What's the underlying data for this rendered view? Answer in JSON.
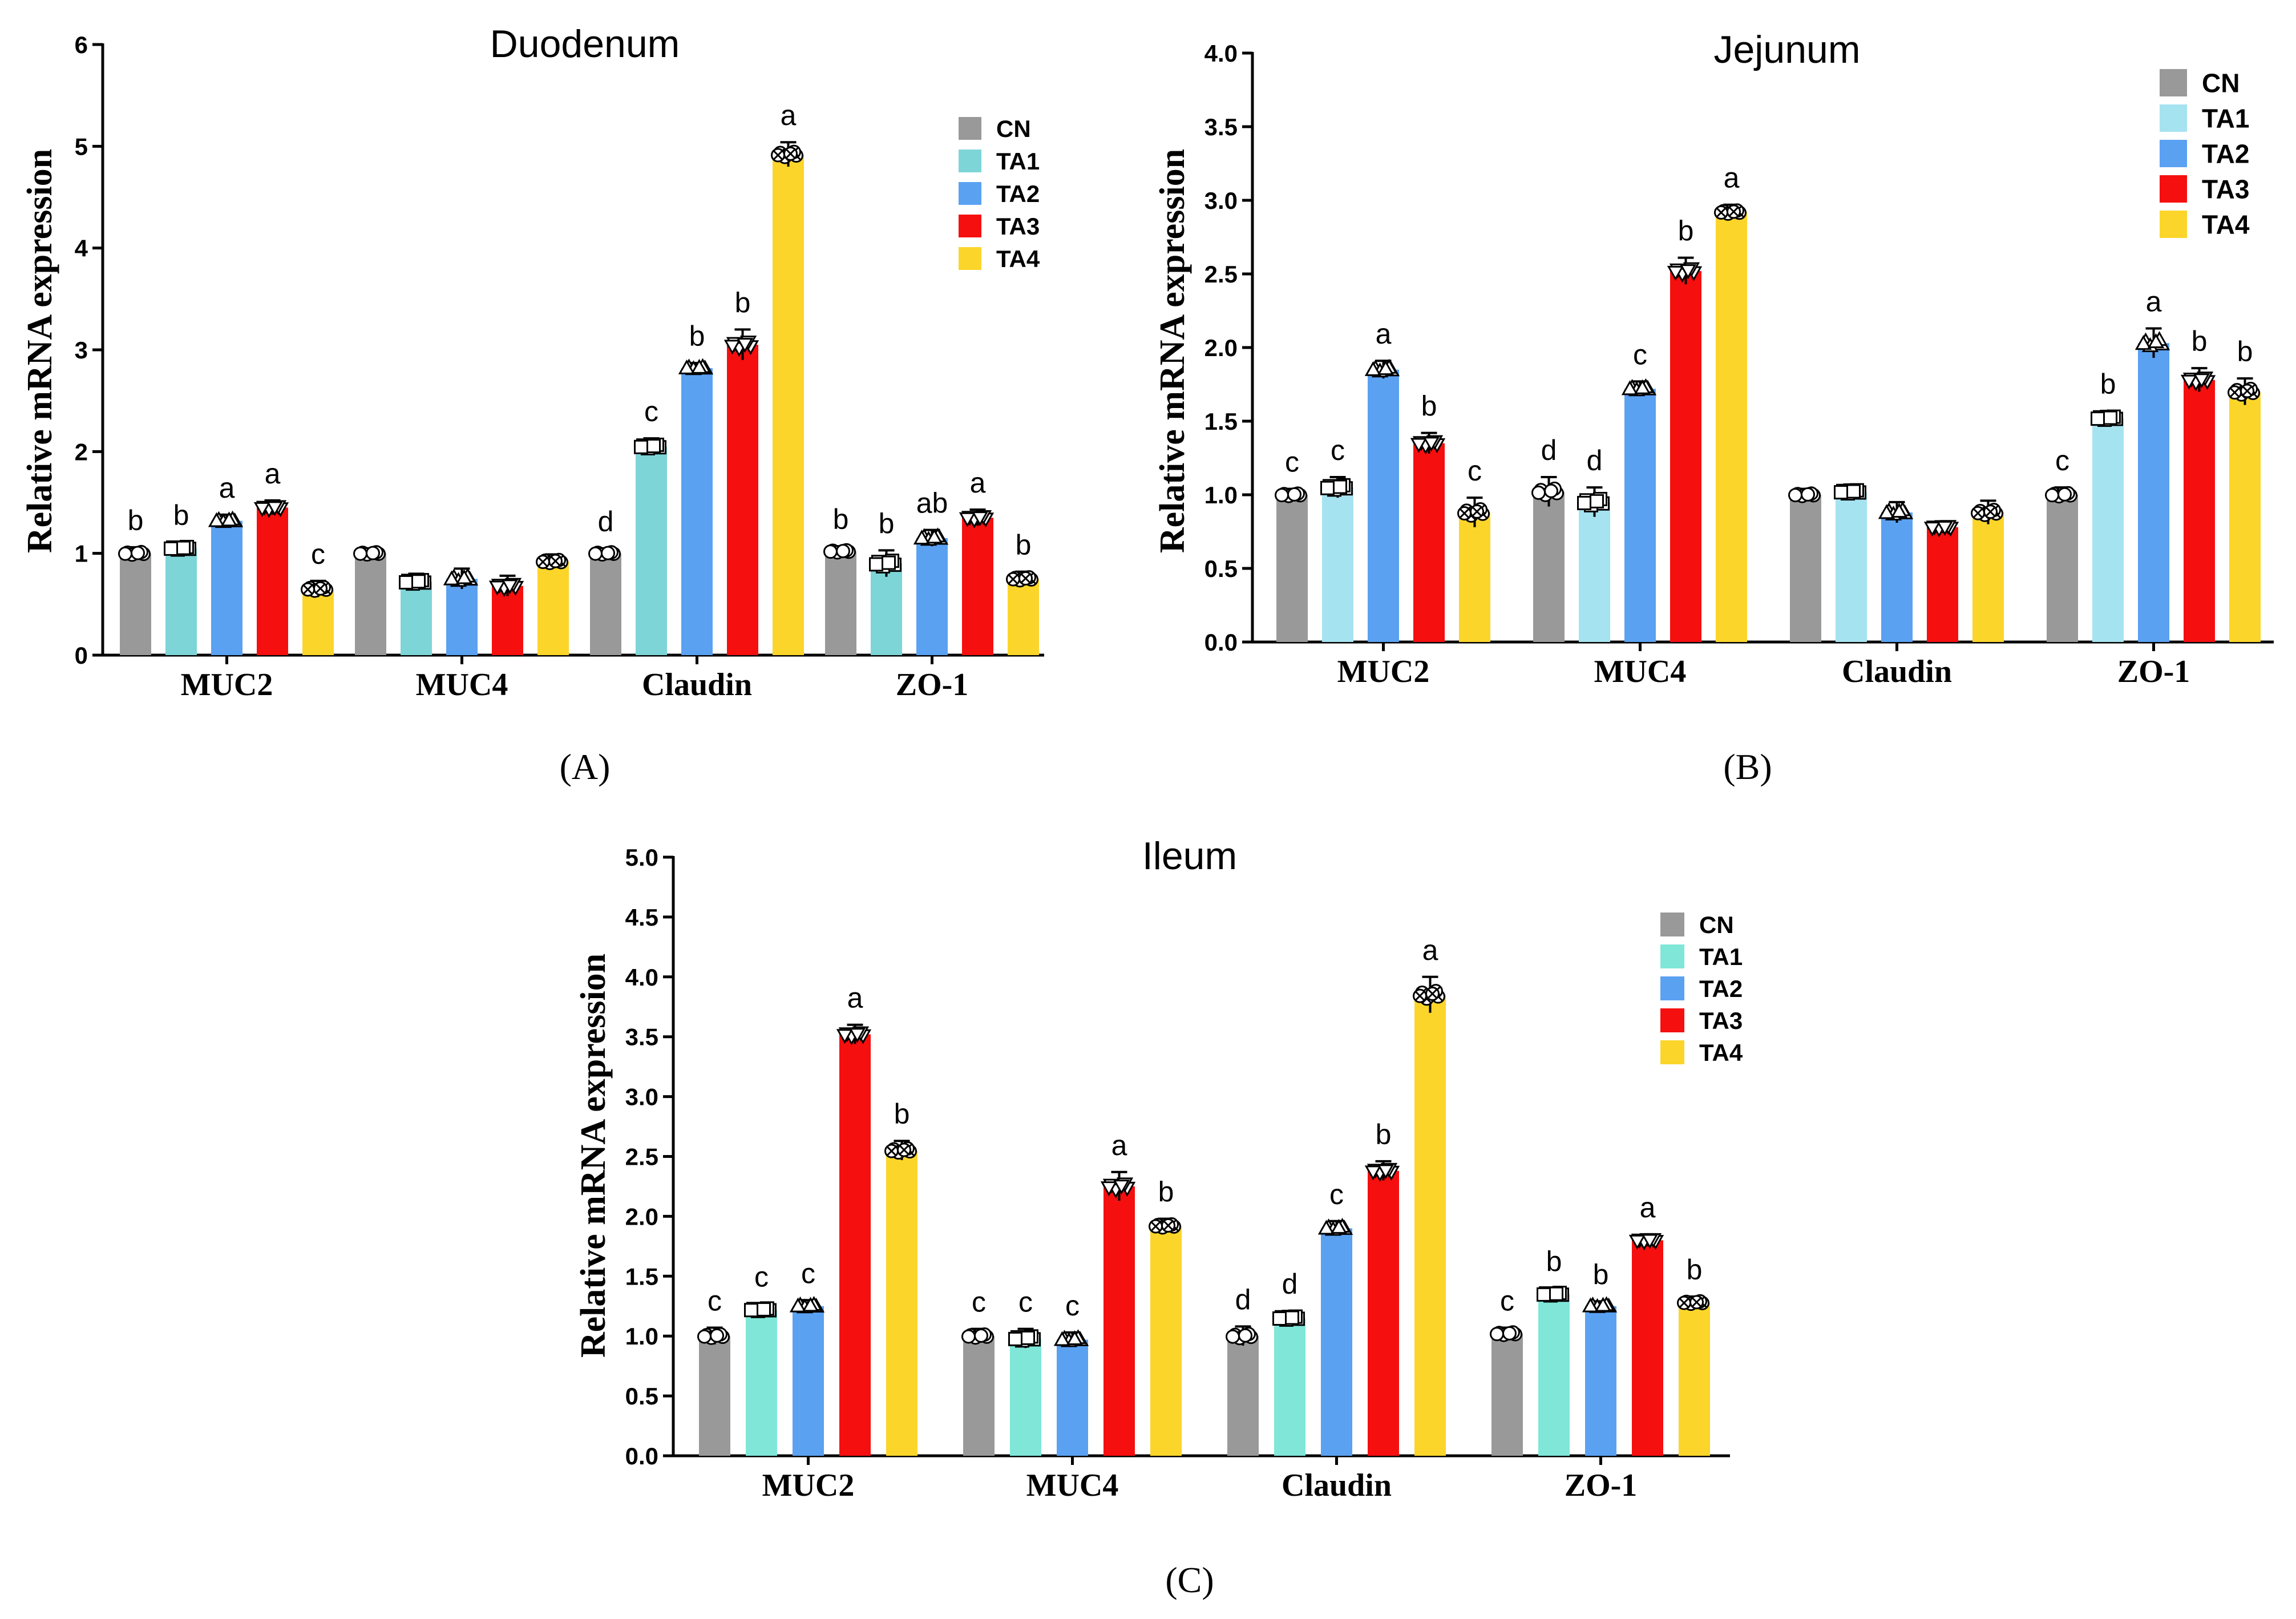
{
  "chart_data": [
    {
      "type": "bar",
      "title": "Duodenum",
      "ylabel": "Relative mRNA expression",
      "xlabel": "",
      "panel_label": "(A)",
      "ylim": [
        0,
        6
      ],
      "yticks": [
        "0",
        "1",
        "2",
        "3",
        "4",
        "5",
        "6"
      ],
      "categories": [
        "MUC2",
        "MUC4",
        "Claudin",
        "ZO-1"
      ],
      "legend": [
        "CN",
        "TA1",
        "TA2",
        "TA3",
        "TA4"
      ],
      "colors": [
        "#999999",
        "#7dd5d8",
        "#5aa1f2",
        "#f50f0f",
        "#fbd52a"
      ],
      "series": [
        {
          "name": "CN",
          "values": [
            1.0,
            1.0,
            1.0,
            1.02
          ],
          "errors": [
            0.06,
            0.05,
            0.05,
            0.05
          ],
          "letters": [
            "b",
            "",
            "d",
            "b"
          ]
        },
        {
          "name": "TA1",
          "values": [
            1.05,
            0.72,
            2.05,
            0.9
          ],
          "errors": [
            0.06,
            0.08,
            0.08,
            0.13
          ],
          "letters": [
            "b",
            "",
            "c",
            "b"
          ]
        },
        {
          "name": "TA2",
          "values": [
            1.32,
            0.75,
            2.82,
            1.15
          ],
          "errors": [
            0.06,
            0.1,
            0.05,
            0.08
          ],
          "letters": [
            "a",
            "",
            "b",
            "ab"
          ]
        },
        {
          "name": "TA3",
          "values": [
            1.45,
            0.68,
            3.05,
            1.35
          ],
          "errors": [
            0.07,
            0.1,
            0.15,
            0.08
          ],
          "letters": [
            "a",
            "",
            "b",
            "a"
          ]
        },
        {
          "name": "TA4",
          "values": [
            0.65,
            0.92,
            4.92,
            0.75
          ],
          "errors": [
            0.08,
            0.07,
            0.12,
            0.07
          ],
          "letters": [
            "c",
            "",
            "a",
            "b"
          ]
        }
      ],
      "markers": [
        "circle",
        "square",
        "triangle",
        "invtriangle",
        "xcircle"
      ]
    },
    {
      "type": "bar",
      "title": "Jejunum",
      "ylabel": "Relative mRNA expression",
      "xlabel": "",
      "panel_label": "(B)",
      "ylim": [
        0,
        4
      ],
      "yticks": [
        "0.0",
        "0.5",
        "1.0",
        "1.5",
        "2.0",
        "2.5",
        "3.0",
        "3.5",
        "4.0"
      ],
      "categories": [
        "MUC2",
        "MUC4",
        "Claudin",
        "ZO-1"
      ],
      "legend": [
        "CN",
        "TA1",
        "TA2",
        "TA3",
        "TA4"
      ],
      "colors": [
        "#999999",
        "#a6e3f1",
        "#5aa1f2",
        "#f50f0f",
        "#fbd52a"
      ],
      "series": [
        {
          "name": "CN",
          "values": [
            1.0,
            1.02,
            1.0,
            1.0
          ],
          "errors": [
            0.04,
            0.1,
            0.04,
            0.05
          ],
          "letters": [
            "c",
            "d",
            "",
            "c"
          ]
        },
        {
          "name": "TA1",
          "values": [
            1.05,
            0.95,
            1.02,
            1.52
          ],
          "errors": [
            0.07,
            0.1,
            0.05,
            0.05
          ],
          "letters": [
            "c",
            "d",
            "",
            "b"
          ]
        },
        {
          "name": "TA2",
          "values": [
            1.85,
            1.72,
            0.88,
            2.03
          ],
          "errors": [
            0.06,
            0.05,
            0.07,
            0.1
          ],
          "letters": [
            "a",
            "c",
            "",
            "a"
          ]
        },
        {
          "name": "TA3",
          "values": [
            1.35,
            2.52,
            0.78,
            1.78
          ],
          "errors": [
            0.07,
            0.09,
            0.04,
            0.08
          ],
          "letters": [
            "b",
            "b",
            "",
            "b"
          ]
        },
        {
          "name": "TA4",
          "values": [
            0.88,
            2.92,
            0.88,
            1.7
          ],
          "errors": [
            0.1,
            0.05,
            0.08,
            0.09
          ],
          "letters": [
            "c",
            "a",
            "",
            "b"
          ]
        }
      ],
      "markers": [
        "circle",
        "square",
        "triangle",
        "invtriangle",
        "xcircle"
      ]
    },
    {
      "type": "bar",
      "title": "Ileum",
      "ylabel": "Relative mRNA expression",
      "xlabel": "",
      "panel_label": "(C)",
      "ylim": [
        0,
        5
      ],
      "yticks": [
        "0.0",
        "0.5",
        "1.0",
        "1.5",
        "2.0",
        "2.5",
        "3.0",
        "3.5",
        "4.0",
        "4.5",
        "5.0"
      ],
      "categories": [
        "MUC2",
        "MUC4",
        "Claudin",
        "ZO-1"
      ],
      "legend": [
        "CN",
        "TA1",
        "TA2",
        "TA3",
        "TA4"
      ],
      "colors": [
        "#999999",
        "#7fe6d8",
        "#5aa1f2",
        "#f50f0f",
        "#fbd52a"
      ],
      "series": [
        {
          "name": "CN",
          "values": [
            1.0,
            1.0,
            1.0,
            1.02
          ],
          "errors": [
            0.07,
            0.06,
            0.08,
            0.05
          ],
          "letters": [
            "c",
            "c",
            "d",
            "c"
          ]
        },
        {
          "name": "TA1",
          "values": [
            1.22,
            0.98,
            1.15,
            1.35
          ],
          "errors": [
            0.05,
            0.08,
            0.06,
            0.05
          ],
          "letters": [
            "c",
            "c",
            "d",
            "b"
          ]
        },
        {
          "name": "TA2",
          "values": [
            1.25,
            0.97,
            1.9,
            1.25
          ],
          "errors": [
            0.05,
            0.06,
            0.06,
            0.04
          ],
          "letters": [
            "c",
            "c",
            "c",
            "b"
          ]
        },
        {
          "name": "TA3",
          "values": [
            3.52,
            2.25,
            2.38,
            1.8
          ],
          "errors": [
            0.08,
            0.12,
            0.08,
            0.05
          ],
          "letters": [
            "a",
            "a",
            "b",
            "a"
          ]
        },
        {
          "name": "TA4",
          "values": [
            2.55,
            1.92,
            3.85,
            1.28
          ],
          "errors": [
            0.08,
            0.06,
            0.15,
            0.05
          ],
          "letters": [
            "b",
            "b",
            "a",
            "b"
          ]
        }
      ],
      "markers": [
        "circle",
        "square",
        "triangle",
        "invtriangle",
        "xcircle"
      ]
    }
  ]
}
